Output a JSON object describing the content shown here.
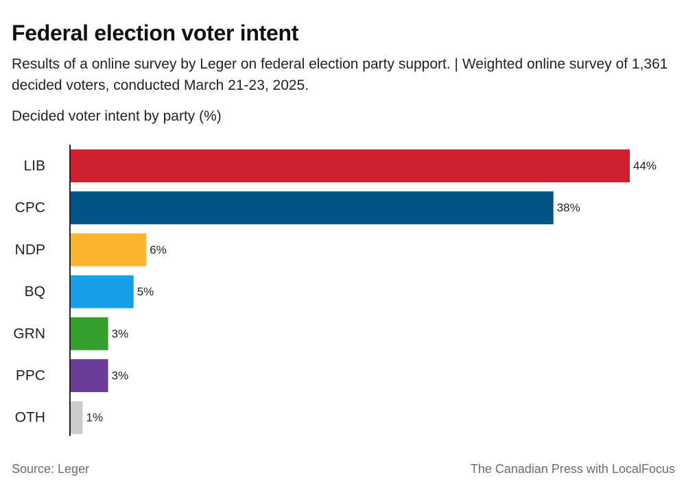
{
  "header": {
    "title": "Federal election voter intent",
    "subtitle": "Results of a online survey by Leger on federal election party support. | Weighted online survey of 1,361 decided voters, conducted March 21-23, 2025.",
    "chart_label": "Decided voter intent by party (%)"
  },
  "footer": {
    "source": "Source:  Leger",
    "credit": "The Canadian Press with LocalFocus"
  },
  "chart_data": {
    "type": "bar",
    "orientation": "horizontal",
    "title": "Federal election voter intent",
    "subtitle": "Results of a online survey by Leger on federal election party support. | Weighted online survey of 1,361 decided voters, conducted March 21-23, 2025.",
    "ylabel": "Decided voter intent by party (%)",
    "xlabel": "",
    "unit": "%",
    "xlim": [
      0,
      44
    ],
    "grid": false,
    "categories": [
      "LIB",
      "CPC",
      "NDP",
      "BQ",
      "GRN",
      "PPC",
      "OTH"
    ],
    "values": [
      44,
      38,
      6,
      5,
      3,
      3,
      1
    ],
    "value_labels": [
      "44%",
      "38%",
      "6%",
      "5%",
      "3%",
      "3%",
      "1%"
    ],
    "colors": [
      "#d01f2e",
      "#005486",
      "#fbb42e",
      "#159fe8",
      "#33a02c",
      "#6a3d99",
      "#cccccc"
    ]
  }
}
